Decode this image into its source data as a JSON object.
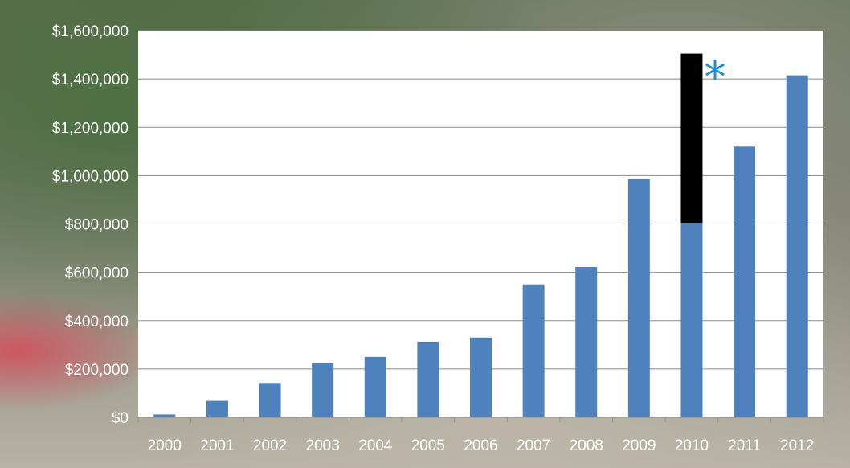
{
  "chart_data": {
    "type": "bar",
    "categories": [
      "2000",
      "2001",
      "2002",
      "2003",
      "2004",
      "2005",
      "2006",
      "2007",
      "2008",
      "2009",
      "2010",
      "2011",
      "2012"
    ],
    "series": [
      {
        "values": [
          12000,
          68000,
          142000,
          225000,
          250000,
          313000,
          330000,
          550000,
          622000,
          985000,
          805000,
          1120000,
          1415000
        ],
        "color": "#4f81bd"
      },
      {
        "values": [
          0,
          0,
          0,
          0,
          0,
          0,
          0,
          0,
          0,
          0,
          700000,
          0,
          0
        ],
        "color": "#000000"
      }
    ],
    "stacked": true,
    "ylim": [
      0,
      1600000
    ],
    "y_ticks": [
      "$0",
      "$200,000",
      "$400,000",
      "$600,000",
      "$800,000",
      "$1,000,000",
      "$1,200,000",
      "$1,400,000",
      "$1,600,000"
    ],
    "y_tick_values": [
      0,
      200000,
      400000,
      600000,
      800000,
      1000000,
      1200000,
      1400000,
      1600000
    ],
    "grid": true,
    "plot_background": "#ffffff",
    "gridline_color": "#8c8c8c",
    "annotations": [
      {
        "text": "*",
        "category": "2010",
        "color": "#1f8fd0"
      }
    ]
  }
}
